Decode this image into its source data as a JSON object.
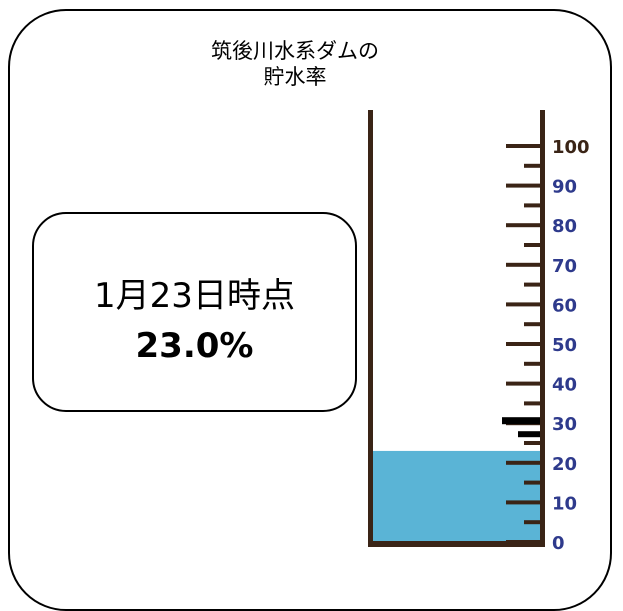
{
  "title": {
    "line1": "筑後川水系ダムの",
    "line2": "貯水率"
  },
  "info": {
    "date_label": "1月23日時点",
    "rate_label": "23.0%"
  },
  "gauge": {
    "level_percent": 23.0,
    "marker_percent": 30,
    "scale_min": 0,
    "scale_max": 100,
    "major_ticks": [
      0,
      10,
      20,
      30,
      40,
      50,
      60,
      70,
      80,
      90,
      100
    ],
    "tick_labels": [
      "0",
      "10",
      "20",
      "30",
      "40",
      "50",
      "60",
      "70",
      "80",
      "90",
      "100"
    ],
    "colors": {
      "wall": "#3a2416",
      "water": "#5ab4d6",
      "tick": "#3a2416",
      "label_top": "#3a2416",
      "label": "#2e3a8c",
      "marker": "#000000"
    }
  }
}
